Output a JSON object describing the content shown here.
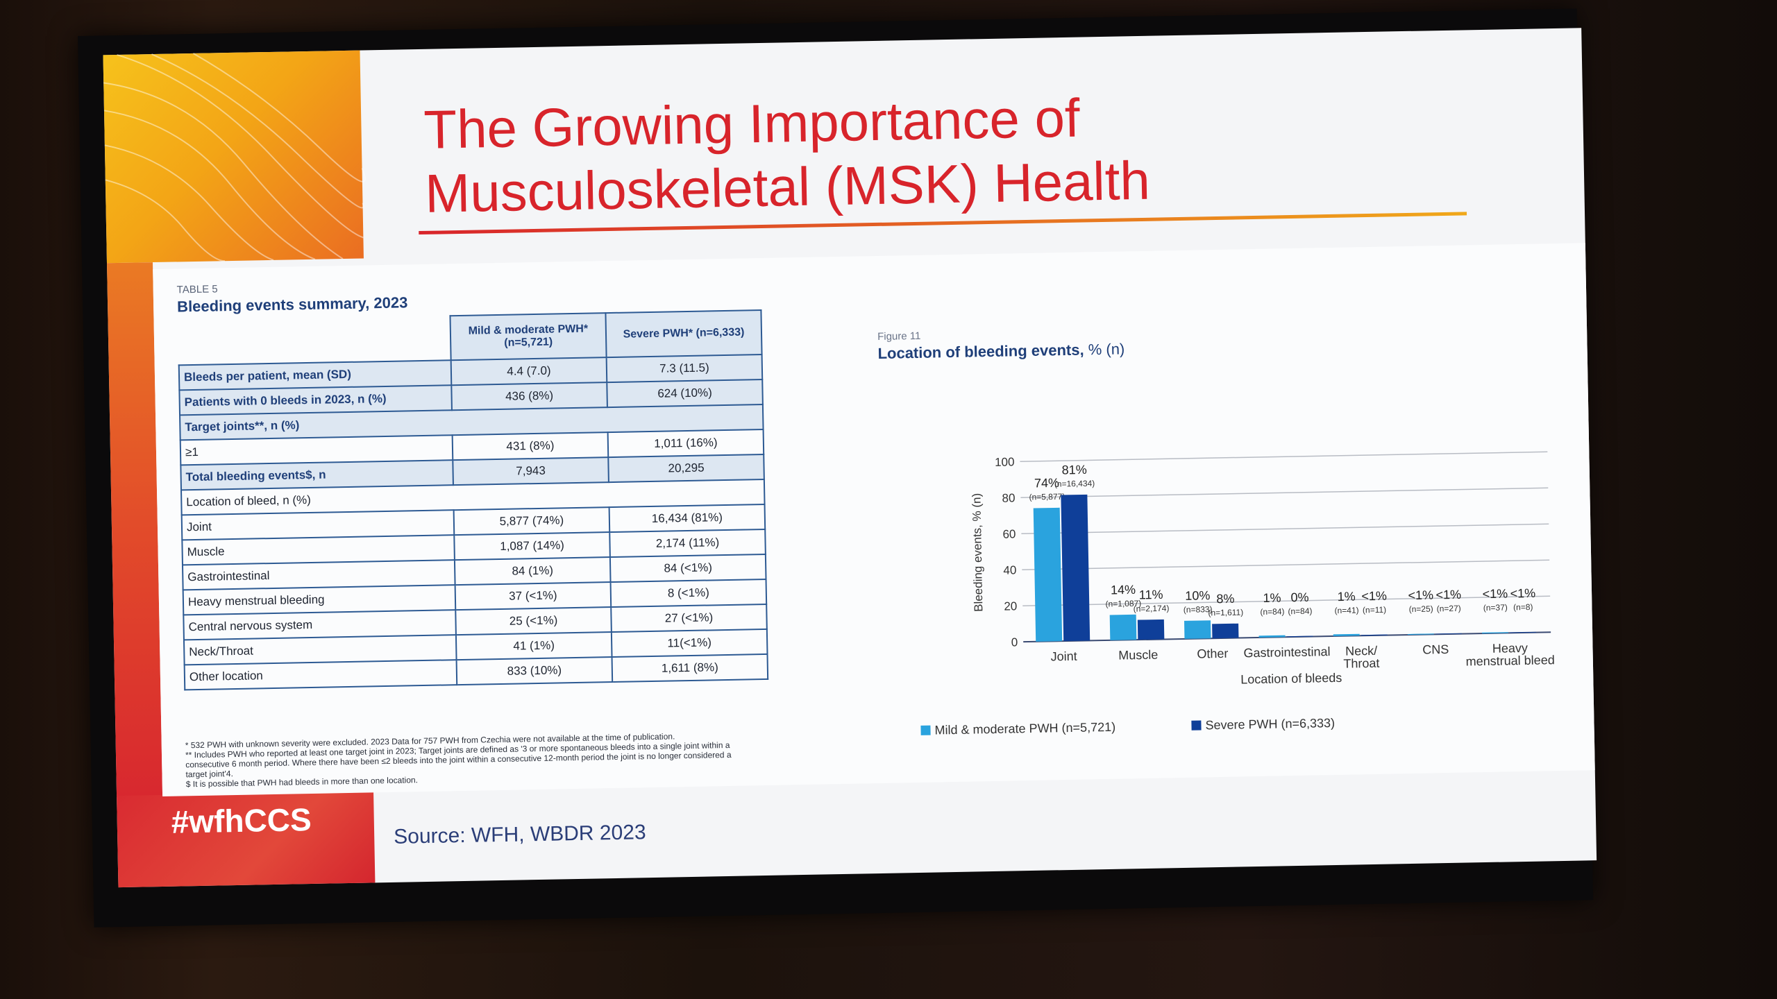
{
  "slide": {
    "title_line1": "The Growing Importance of",
    "title_line2": "Musculoskeletal (MSK) Health",
    "hashtag": "#wfhCCS",
    "source": "Source: WFH, WBDR 2023"
  },
  "table": {
    "label": "TABLE 5",
    "caption": "Bleeding events summary, 2023",
    "col1": "Mild & moderate PWH* (n=5,721)",
    "col2": "Severe PWH* (n=6,333)",
    "rows": [
      {
        "label": "Bleeds per patient, mean (SD)",
        "v1": "4.4 (7.0)",
        "v2": "7.3 (11.5)"
      },
      {
        "label": "Patients with 0 bleeds in 2023, n (%)",
        "v1": "436 (8%)",
        "v2": "624 (10%)"
      },
      {
        "label": "Target joints**, n (%)",
        "v1": "",
        "v2": ""
      },
      {
        "label": "≥1",
        "v1": "431 (8%)",
        "v2": "1,011 (16%)"
      },
      {
        "label": "Total bleeding events$, n",
        "v1": "7,943",
        "v2": "20,295"
      },
      {
        "label": "Location of bleed, n (%)",
        "v1": "",
        "v2": ""
      },
      {
        "label": "Joint",
        "v1": "5,877 (74%)",
        "v2": "16,434 (81%)"
      },
      {
        "label": "Muscle",
        "v1": "1,087 (14%)",
        "v2": "2,174 (11%)"
      },
      {
        "label": "Gastrointestinal",
        "v1": "84 (1%)",
        "v2": "84 (<1%)"
      },
      {
        "label": "Heavy menstrual bleeding",
        "v1": "37 (<1%)",
        "v2": "8 (<1%)"
      },
      {
        "label": "Central nervous system",
        "v1": "25 (<1%)",
        "v2": "27 (<1%)"
      },
      {
        "label": "Neck/Throat",
        "v1": "41 (1%)",
        "v2": "11(<1%)"
      },
      {
        "label": "Other location",
        "v1": "833 (10%)",
        "v2": "1,611 (8%)"
      }
    ],
    "footnotes": [
      "* 532 PWH with unknown severity were excluded. 2023 Data for 757 PWH from Czechia were not available at the time of publication.",
      "** Includes PWH who reported at least one target joint in 2023; Target joints are defined as '3 or more spontaneous bleeds into a single joint within a consecutive 6 month period. Where there have been ≤2 bleeds into the joint within a consecutive 12-month period the joint is no longer considered a target joint'4.",
      "$ It is possible that PWH had bleeds in more than one location."
    ]
  },
  "figure": {
    "label": "Figure 11",
    "caption": "Location of bleeding events,",
    "caption_unit": "% (n)"
  },
  "chart_data": {
    "type": "bar",
    "title": "Location of bleeding events, % (n)",
    "xlabel": "Location of bleeds",
    "ylabel": "Bleeding events, % (n)",
    "ylim": [
      0,
      100
    ],
    "yticks": [
      "0",
      "20",
      "40",
      "60",
      "80",
      "100"
    ],
    "grid": true,
    "legend_position": "bottom",
    "categories": [
      "Joint",
      "Muscle",
      "Other",
      "Gastrointestinal",
      "Neck/ Throat",
      "CNS",
      "Heavy menstrual bleed"
    ],
    "series": [
      {
        "name": "Mild & moderate PWH (n=5,721)",
        "color": "#2aa3de",
        "values": [
          74,
          14,
          10,
          1,
          1,
          0.4,
          0.5
        ],
        "pct_labels": [
          "74%",
          "14%",
          "10%",
          "1%",
          "1%",
          "<1%",
          "<1%"
        ],
        "n_labels": [
          "(n=5,877)",
          "(n=1,087)",
          "(n=833)",
          "(n=84)",
          "(n=41)",
          "(n=25)",
          "(n=37)"
        ]
      },
      {
        "name": "Severe PWH (n=6,333)",
        "color": "#0f3f99",
        "values": [
          81,
          11,
          8,
          0.4,
          0.4,
          0.3,
          0.3
        ],
        "pct_labels": [
          "81%",
          "11%",
          "8%",
          "0%",
          "<1%",
          "<1%",
          "<1%"
        ],
        "n_labels": [
          "(n=16,434)",
          "(n=2,174)",
          "(n=1,611)",
          "(n=84)",
          "(n=11)",
          "(n=27)",
          "(n=8)"
        ]
      }
    ]
  }
}
